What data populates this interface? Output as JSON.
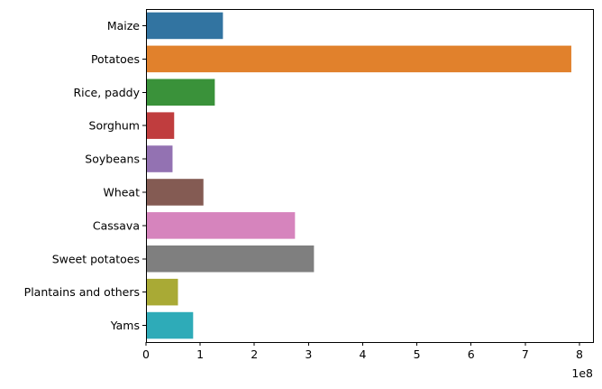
{
  "chart_data": {
    "type": "bar",
    "orientation": "horizontal",
    "title": "",
    "xlabel": "",
    "ylabel": "",
    "categories": [
      "Maize",
      "Potatoes",
      "Rice, paddy",
      "Sorghum",
      "Soybeans",
      "Wheat",
      "Cassava",
      "Sweet potatoes",
      "Plantains and others",
      "Yams"
    ],
    "values": [
      142000000,
      785000000,
      127000000,
      52000000,
      49000000,
      106000000,
      275000000,
      310000000,
      59000000,
      87000000
    ],
    "colors": [
      "#3274a1",
      "#e1812c",
      "#3a923a",
      "#c03d3e",
      "#9372b2",
      "#845b53",
      "#d684bd",
      "#7f7f7f",
      "#a9aa35",
      "#2eabb8"
    ],
    "xlim": [
      0,
      825000000
    ],
    "x_ticks": [
      0,
      1,
      2,
      3,
      4,
      5,
      6,
      7,
      8
    ],
    "x_tick_labels": [
      "0",
      "1",
      "2",
      "3",
      "4",
      "5",
      "6",
      "7",
      "8"
    ],
    "x_offset_label": "1e8",
    "grid": false
  }
}
